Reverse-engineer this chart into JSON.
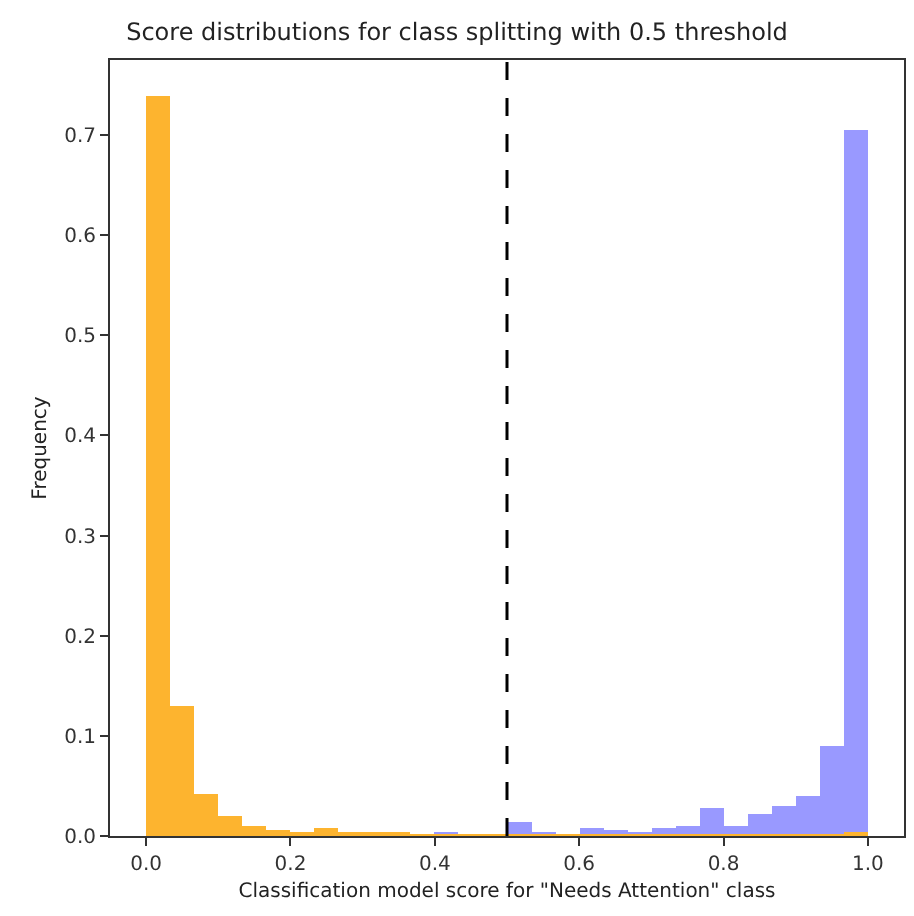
{
  "chart_data": {
    "type": "histogram",
    "title": "Score distributions for class splitting with 0.5 threshold",
    "xlabel": "Classification model score for \"Needs Attention\" class",
    "ylabel": "Frequency",
    "bins": [
      0,
      0.0333,
      0.0667,
      0.1,
      0.1333,
      0.1667,
      0.2,
      0.2333,
      0.2667,
      0.3,
      0.3333,
      0.3667,
      0.4,
      0.4333,
      0.4667,
      0.5,
      0.5333,
      0.5667,
      0.6,
      0.6333,
      0.6667,
      0.7,
      0.7333,
      0.7667,
      0.8,
      0.8333,
      0.8667,
      0.9,
      0.9333,
      0.9667,
      1.0
    ],
    "series": [
      {
        "color": "#9999ff",
        "values": [
          0,
          0,
          0,
          0,
          0,
          0,
          null,
          null,
          0,
          0,
          0,
          0,
          0.005,
          null,
          null,
          0.014,
          0.003,
          0.002,
          0.008,
          0.006,
          0.004,
          0.008,
          0.01,
          0.027,
          0.009,
          0.022,
          0.029,
          0.039,
          0.089,
          0.705
        ]
      },
      {
        "color": "#fdb42f",
        "values": [
          0.74,
          0.13,
          0.042,
          0.02,
          0.01,
          0.007,
          0.005,
          0.008,
          0.004,
          0.005,
          0.004,
          0.002,
          0.001,
          0.002,
          0.002,
          0.002,
          0.001,
          0.001,
          0.001,
          0.001,
          0.001,
          0.001,
          0.001,
          0.001,
          0.001,
          0.001,
          0.001,
          0.001,
          0.002,
          0.005
        ]
      }
    ],
    "xlim": [
      -0.05,
      1.05
    ],
    "xticks": [
      {
        "value": 0,
        "label": "0.0"
      },
      0.2,
      0.4,
      0.6,
      0.8,
      {
        "value": 1,
        "label": "1.0"
      }
    ],
    "ylim": [
      0,
      0.775
    ],
    "yticks": [
      {
        "value": 0,
        "label": "0.0"
      },
      0.1,
      0.2,
      0.3,
      0.4,
      0.5,
      0.6,
      0.7
    ],
    "ref_lines": [
      {
        "axis": "x",
        "value": 0.5,
        "color": "#000000",
        "line_style": "dashed"
      }
    ]
  }
}
